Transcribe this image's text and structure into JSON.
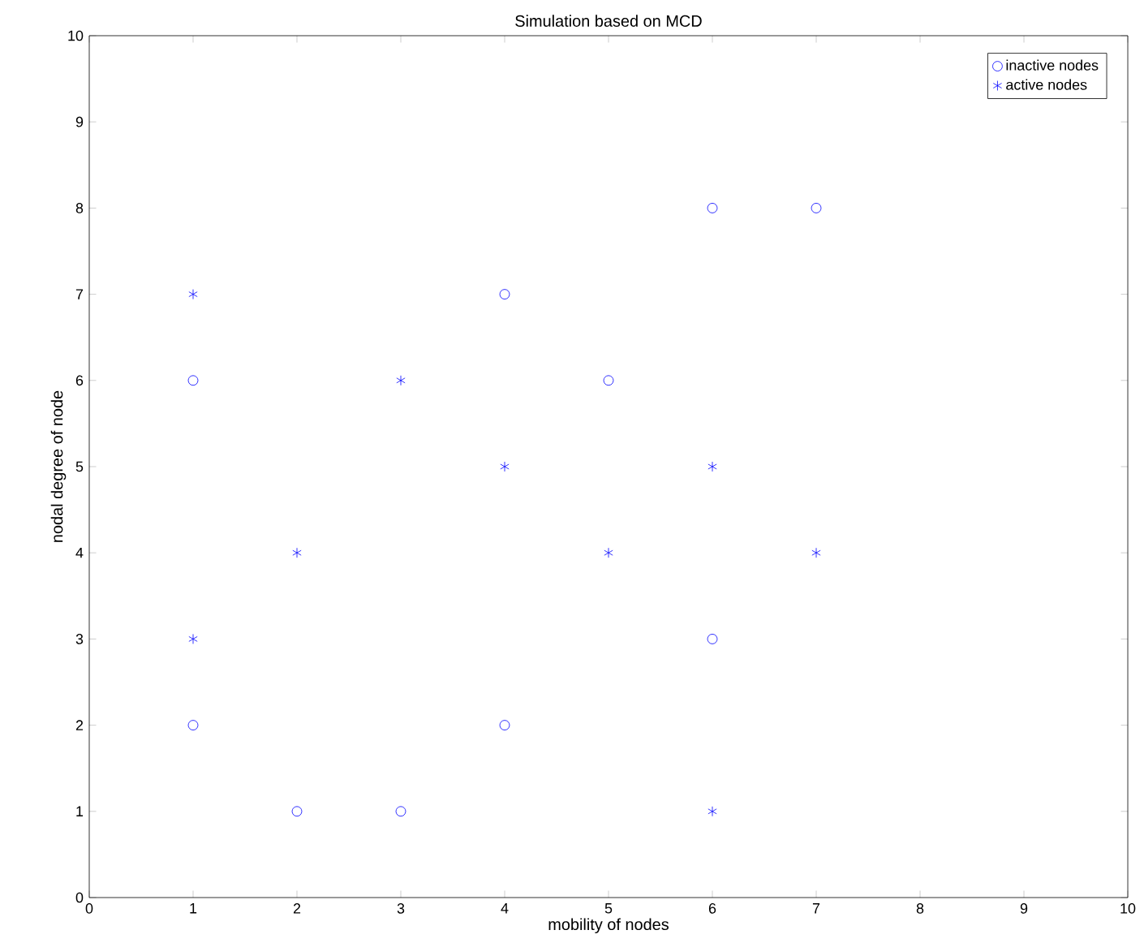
{
  "chart_data": {
    "type": "scatter",
    "title": "Simulation based on MCD",
    "xlabel": "mobility of nodes",
    "ylabel": "nodal degree of node",
    "xlim": [
      0,
      10
    ],
    "ylim": [
      0,
      10
    ],
    "xticks": [
      0,
      1,
      2,
      3,
      4,
      5,
      6,
      7,
      8,
      9,
      10
    ],
    "yticks": [
      0,
      1,
      2,
      3,
      4,
      5,
      6,
      7,
      8,
      9,
      10
    ],
    "grid": false,
    "legend": "top right",
    "series": [
      {
        "name": "inactive nodes",
        "color": "#0000ff",
        "marker": "circle",
        "x": [
          1,
          1,
          2,
          3,
          4,
          4,
          5,
          6,
          6,
          7
        ],
        "values": [
          6,
          2,
          1,
          1,
          7,
          2,
          6,
          8,
          3,
          8
        ]
      },
      {
        "name": "active nodes",
        "color": "#0000ff",
        "marker": "cross",
        "x": [
          1,
          1,
          2,
          3,
          4,
          5,
          6,
          6,
          7
        ],
        "values": [
          7,
          3,
          4,
          6,
          5,
          4,
          5,
          1,
          4
        ]
      }
    ]
  }
}
